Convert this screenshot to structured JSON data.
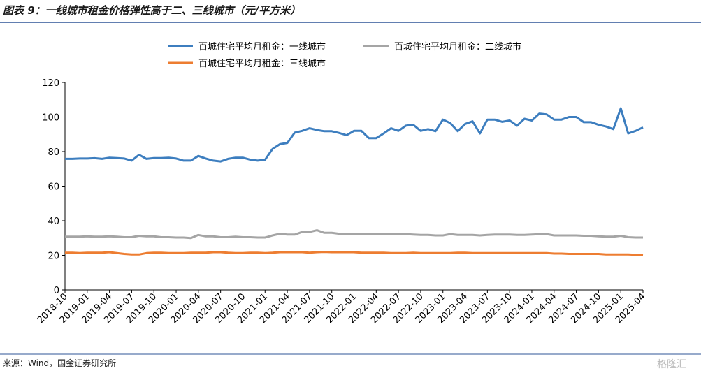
{
  "chart_data": {
    "type": "line",
    "title": "图表 9：一线城市租金价格弹性高于二、三线城市（元/平方米）",
    "source": "来源：Wind，国金证券研究所",
    "watermark": "格隆汇",
    "categories": [
      "2018-10",
      null,
      null,
      "2019-01",
      null,
      null,
      "2019-04",
      null,
      null,
      "2019-07",
      null,
      null,
      "2019-10",
      null,
      null,
      "2020-01",
      null,
      null,
      "2020-04",
      null,
      null,
      "2020-07",
      null,
      null,
      "2020-10",
      null,
      null,
      "2021-01",
      null,
      null,
      "2021-04",
      null,
      null,
      "2021-07",
      null,
      null,
      "2021-10",
      null,
      null,
      "2022-01",
      null,
      null,
      "2022-04",
      null,
      null,
      "2022-07",
      null,
      null,
      "2022-10",
      null,
      null,
      "2023-01",
      null,
      null,
      "2023-04",
      null,
      null,
      "2023-07",
      null,
      null,
      "2023-10",
      null,
      null,
      "2024-01",
      null,
      null,
      "2024-04",
      null,
      null,
      "2024-07",
      null,
      null,
      "2024-10",
      null,
      null,
      "2025-01",
      null,
      null,
      "2025-04"
    ],
    "series": [
      {
        "name": "百城住宅平均月租金：一线城市",
        "color": "#3d7ebf",
        "values": [
          75.8,
          75.8,
          76,
          76,
          76.2,
          75.8,
          76.5,
          76.3,
          76,
          74.8,
          78.2,
          75.8,
          76.3,
          76.3,
          76.5,
          76,
          74.8,
          74.8,
          77.5,
          76,
          74.8,
          74.3,
          75.8,
          76.5,
          76.5,
          75.3,
          74.8,
          75.3,
          81.5,
          84.3,
          85,
          91,
          92,
          93.5,
          92.5,
          91.8,
          91.8,
          90.8,
          89.5,
          92,
          92,
          87.8,
          87.8,
          90.5,
          93.5,
          92,
          95,
          95.5,
          92,
          93,
          91.8,
          98.5,
          96.5,
          91.8,
          96,
          97.5,
          90.5,
          98.5,
          98.5,
          97.2,
          98,
          95,
          99,
          98,
          102,
          101.5,
          98.5,
          98.5,
          100,
          100,
          97,
          97,
          95.5,
          94.5,
          93,
          105,
          90.5,
          92,
          94
        ]
      },
      {
        "name": "百城住宅平均月租金：二线城市",
        "color": "#a5a5a5",
        "values": [
          30.8,
          30.8,
          30.8,
          31,
          30.8,
          30.8,
          31,
          30.8,
          30.5,
          30.5,
          31.3,
          31,
          31,
          30.5,
          30.5,
          30.3,
          30.3,
          30,
          31.8,
          31,
          31,
          30.5,
          30.5,
          30.8,
          30.5,
          30.5,
          30.3,
          30.3,
          31.5,
          32.5,
          32,
          32,
          33.5,
          33.5,
          34.5,
          33,
          33,
          32.5,
          32.5,
          32.5,
          32.5,
          32.5,
          32.3,
          32.3,
          32.3,
          32.5,
          32.3,
          32,
          31.8,
          31.8,
          31.5,
          31.5,
          32.3,
          31.8,
          31.8,
          31.8,
          31.5,
          31.8,
          32,
          32,
          32,
          31.8,
          31.8,
          32,
          32.3,
          32.3,
          31.5,
          31.5,
          31.5,
          31.5,
          31.3,
          31.3,
          31,
          30.8,
          30.8,
          31.3,
          30.5,
          30.3,
          30.3
        ]
      },
      {
        "name": "百城住宅平均月租金：三线城市",
        "color": "#ed7d31",
        "values": [
          21.5,
          21.5,
          21.3,
          21.5,
          21.5,
          21.5,
          21.8,
          21.3,
          20.8,
          20.5,
          20.5,
          21.3,
          21.5,
          21.5,
          21.3,
          21.3,
          21.3,
          21.5,
          21.5,
          21.5,
          21.8,
          21.8,
          21.5,
          21.3,
          21.3,
          21.5,
          21.5,
          21.3,
          21.5,
          21.8,
          21.8,
          21.8,
          21.8,
          21.5,
          21.8,
          22,
          21.8,
          21.8,
          21.8,
          21.8,
          21.5,
          21.5,
          21.5,
          21.5,
          21.3,
          21.3,
          21.3,
          21.5,
          21.3,
          21.3,
          21.3,
          21.3,
          21.3,
          21.5,
          21.5,
          21.3,
          21.3,
          21.3,
          21.3,
          21.3,
          21.3,
          21.3,
          21.3,
          21.3,
          21.3,
          21.3,
          21,
          21,
          20.8,
          20.8,
          20.8,
          20.8,
          20.8,
          20.5,
          20.5,
          20.5,
          20.5,
          20.3,
          20
        ]
      }
    ],
    "ylim": [
      0,
      120
    ],
    "yticks": [
      0,
      20,
      40,
      60,
      80,
      100,
      120
    ],
    "grid": false
  }
}
